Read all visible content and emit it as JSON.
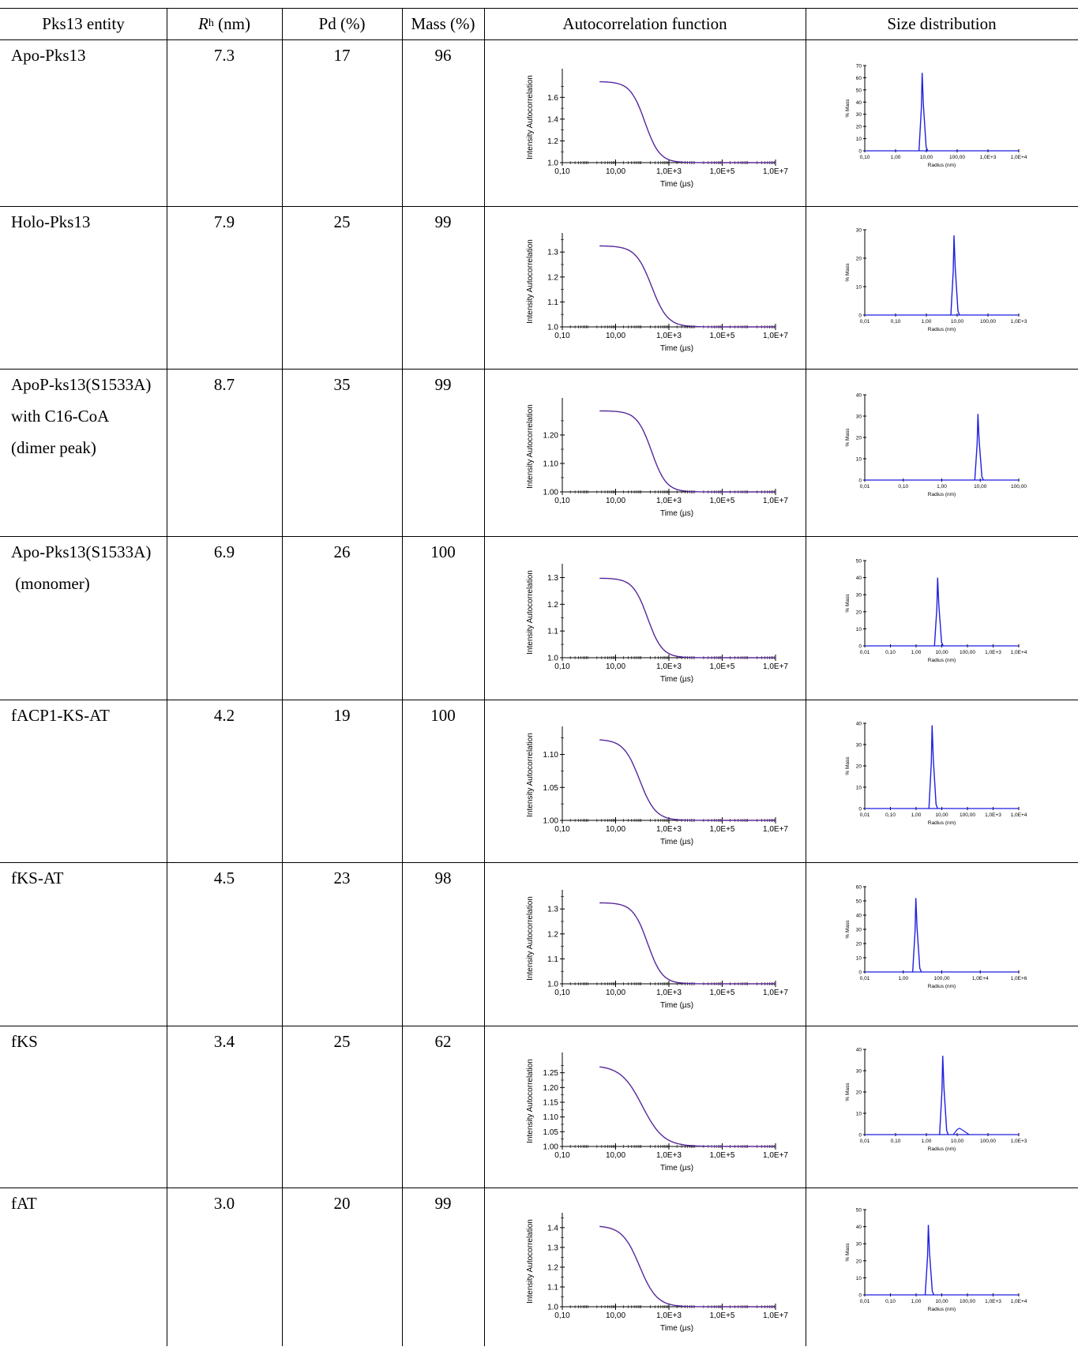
{
  "headers": {
    "entity": "Pks13 entity",
    "rh_italic": "R",
    "rh_sub": "h",
    "rh_unit": " (nm)",
    "pd": "Pd (%)",
    "mass": "Mass (%)",
    "acf": "Autocorrelation function",
    "sd": "Size distribution"
  },
  "rows": [
    {
      "entity_lines": [
        "Apo-Pks13"
      ],
      "rh": "7.3",
      "pd": "17",
      "mass": "96",
      "acf": {
        "ylabel": "Intensity Autocorrelation",
        "yticks": [
          "1.0",
          "1.2",
          "1.4",
          "1.6"
        ],
        "xticks": [
          "0,10",
          "10,00",
          "1,0E+3",
          "1,0E+5",
          "1,0E+7"
        ],
        "xlabel": "Time (µs)",
        "start": 1.745,
        "base": 1.0,
        "tau_log": 2.1,
        "width": 0.55
      },
      "sd": {
        "ylabel": "% Mass",
        "yticks": [
          "0",
          "10",
          "20",
          "30",
          "40",
          "50",
          "60",
          "70"
        ],
        "xticks": [
          "0,10",
          "1,00",
          "10,00",
          "100,00",
          "1,0E+3",
          "1,0E+4"
        ],
        "xlabel": "Radius (nm)",
        "peak_pct": 64,
        "peak_r": 7.3
      }
    },
    {
      "entity_lines": [
        "Holo-Pks13"
      ],
      "rh": "7.9",
      "pd": "25",
      "mass": "99",
      "acf": {
        "ylabel": "Intensity Autocorrelation",
        "yticks": [
          "1.0",
          "1.1",
          "1.2",
          "1.3"
        ],
        "xticks": [
          "0,10",
          "10,00",
          "1,0E+3",
          "1,0E+5",
          "1,0E+7"
        ],
        "xlabel": "Time (µs)",
        "start": 1.325,
        "base": 1.0,
        "tau_log": 2.35,
        "width": 0.6
      },
      "sd": {
        "ylabel": "% Mass",
        "yticks": [
          "0",
          "10",
          "20",
          "30"
        ],
        "xticks": [
          "0,01",
          "0,10",
          "1,00",
          "10,00",
          "100,00",
          "1,0E+3"
        ],
        "xlabel": "Radius (nm)",
        "peak_pct": 28,
        "peak_r": 7.9
      }
    },
    {
      "entity_lines": [
        "ApoP-ks13(S1533A)",
        "with C16-CoA",
        "(dimer peak)"
      ],
      "rh": "8.7",
      "pd": "35",
      "mass": "99",
      "acf": {
        "ylabel": "Intensity Autocorrelation",
        "yticks": [
          "1.00",
          "1.10",
          "1.20"
        ],
        "xticks": [
          "0,10",
          "10,00",
          "1,0E+3",
          "1,0E+5",
          "1,0E+7"
        ],
        "xlabel": "Time (µs)",
        "start": 1.285,
        "base": 1.0,
        "tau_log": 2.35,
        "width": 0.55
      },
      "sd": {
        "ylabel": "% Mass",
        "yticks": [
          "0",
          "10",
          "20",
          "30",
          "40"
        ],
        "xticks": [
          "0,01",
          "0,10",
          "1,00",
          "10,00",
          "100,00"
        ],
        "xlabel": "Radius (nm)",
        "peak_pct": 31,
        "peak_r": 8.7
      }
    },
    {
      "entity_lines": [
        "Apo-Pks13(S1533A)",
        " (monomer)"
      ],
      "rh": "6.9",
      "pd": "26",
      "mass": "100",
      "acf": {
        "ylabel": "Intensity Autocorrelation",
        "yticks": [
          "1.0",
          "1.1",
          "1.2",
          "1.3"
        ],
        "xticks": [
          "0,10",
          "10,00",
          "1,0E+3",
          "1,0E+5",
          "1,0E+7"
        ],
        "xlabel": "Time (µs)",
        "start": 1.298,
        "base": 1.0,
        "tau_log": 2.2,
        "width": 0.55
      },
      "sd": {
        "ylabel": "% Mass",
        "yticks": [
          "0",
          "10",
          "20",
          "30",
          "40",
          "50"
        ],
        "xticks": [
          "0,01",
          "0,10",
          "1,00",
          "10,00",
          "100,00",
          "1,0E+3",
          "1,0E+4"
        ],
        "xlabel": "Radius (nm)",
        "peak_pct": 40,
        "peak_r": 6.9
      }
    },
    {
      "entity_lines": [
        "fACP1-KS-AT"
      ],
      "rh": "4.2",
      "pd": "19",
      "mass": "100",
      "acf": {
        "ylabel": "Intensity Autocorrelation",
        "yticks": [
          "1.00",
          "1.05",
          "1.10"
        ],
        "xticks": [
          "0,10",
          "10,00",
          "1,0E+3",
          "1,0E+5",
          "1,0E+7"
        ],
        "xlabel": "Time (µs)",
        "start": 1.123,
        "base": 1.0,
        "tau_log": 1.9,
        "width": 0.6
      },
      "sd": {
        "ylabel": "% Mass",
        "yticks": [
          "0",
          "10",
          "20",
          "30",
          "40"
        ],
        "xticks": [
          "0,01",
          "0,10",
          "1,00",
          "10,00",
          "100,00",
          "1,0E+3",
          "1,0E+4"
        ],
        "xlabel": "Radius (nm)",
        "peak_pct": 39,
        "peak_r": 4.2
      }
    },
    {
      "entity_lines": [
        "fKS-AT"
      ],
      "rh": "4.5",
      "pd": "23",
      "mass": "98",
      "acf": {
        "ylabel": "Intensity Autocorrelation",
        "yticks": [
          "1.0",
          "1.1",
          "1.2",
          "1.3"
        ],
        "xticks": [
          "0,10",
          "10,00",
          "1,0E+3",
          "1,0E+5",
          "1,0E+7"
        ],
        "xlabel": "Time (µs)",
        "start": 1.325,
        "base": 1.0,
        "tau_log": 2.2,
        "width": 0.55
      },
      "sd": {
        "ylabel": "% Mass",
        "yticks": [
          "0",
          "10",
          "20",
          "30",
          "40",
          "50",
          "60"
        ],
        "xticks": [
          "0,01",
          "1,00",
          "100,00",
          "1,0E+4",
          "1,0E+6"
        ],
        "xlabel": "Radius (nm)",
        "peak_pct": 52,
        "peak_r": 4.5
      }
    },
    {
      "entity_lines": [
        "fKS"
      ],
      "rh": "3.4",
      "pd": "25",
      "mass": "62",
      "acf": {
        "ylabel": "Intensity Autocorrelation",
        "yticks": [
          "1.00",
          "1.05",
          "1.10",
          "1.15",
          "1.20",
          "1.25"
        ],
        "xticks": [
          "0,10",
          "10,00",
          "1,0E+3",
          "1,0E+5",
          "1,0E+7"
        ],
        "xlabel": "Time (µs)",
        "start": 1.275,
        "base": 1.0,
        "tau_log": 2.0,
        "width": 0.8
      },
      "sd": {
        "ylabel": "% Mass",
        "yticks": [
          "0",
          "10",
          "20",
          "30",
          "40"
        ],
        "xticks": [
          "0,01",
          "0,10",
          "1,00",
          "10,00",
          "100,00",
          "1,0E+3"
        ],
        "xlabel": "Radius (nm)",
        "peak_pct": 37,
        "peak_r": 3.4,
        "second_peak_pct": 3,
        "second_peak_r": 12
      }
    },
    {
      "entity_lines": [
        "fAT"
      ],
      "rh": "3.0",
      "pd": "20",
      "mass": "99",
      "acf": {
        "ylabel": "Intensity Autocorrelation",
        "yticks": [
          "1.0",
          "1.1",
          "1.2",
          "1.3",
          "1.4"
        ],
        "xticks": [
          "0,10",
          "10,00",
          "1,0E+3",
          "1,0E+5",
          "1,0E+7"
        ],
        "xlabel": "Time (µs)",
        "start": 1.41,
        "base": 1.0,
        "tau_log": 1.9,
        "width": 0.65
      },
      "sd": {
        "ylabel": "% Mass",
        "yticks": [
          "0",
          "10",
          "20",
          "30",
          "40",
          "50"
        ],
        "xticks": [
          "0,01",
          "0,10",
          "1,00",
          "10,00",
          "100,00",
          "1,0E+3",
          "1,0E+4"
        ],
        "xlabel": "Radius (nm)",
        "peak_pct": 41,
        "peak_r": 3.0
      }
    }
  ]
}
